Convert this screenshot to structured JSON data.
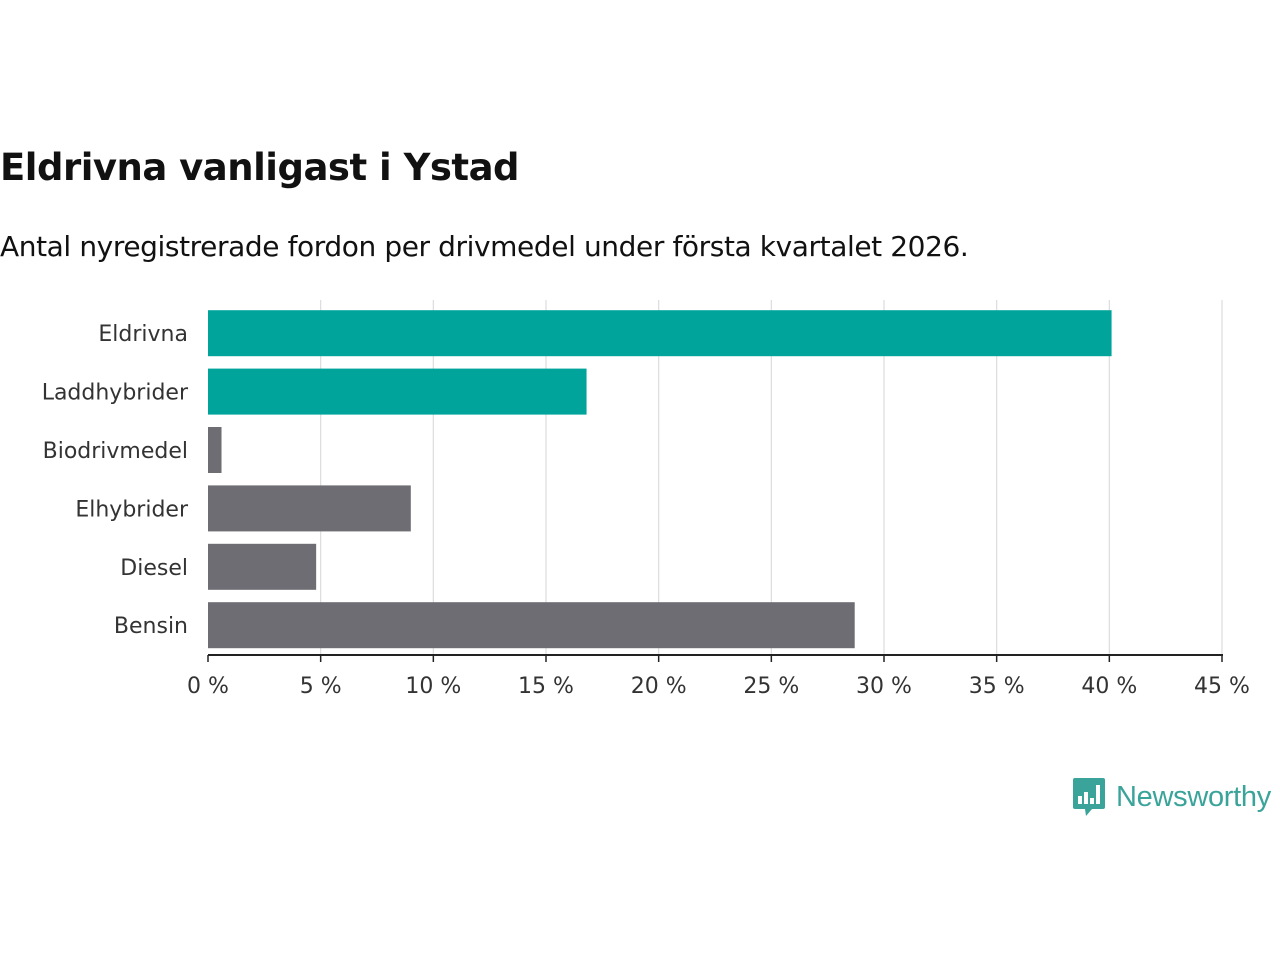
{
  "colors": {
    "highlight": "#00a49a",
    "neutral": "#6e6d73",
    "grid": "#dcdcdc",
    "axis": "#222222",
    "brand": "#3aa39a"
  },
  "brand": {
    "name": "Newsworthy",
    "icon": "newsworthy-bar-chart-speech-bubble-icon"
  },
  "chart_data": {
    "type": "bar",
    "orientation": "horizontal",
    "title": "Eldrivna vanligast i Ystad",
    "subtitle": "Antal nyregistrerade fordon per drivmedel under första kvartalet 2026.",
    "categories": [
      "Eldrivna",
      "Laddhybrider",
      "Biodrivmedel",
      "Elhybrider",
      "Diesel",
      "Bensin"
    ],
    "values": [
      40.1,
      16.8,
      0.6,
      9.0,
      4.8,
      28.7
    ],
    "highlighted": [
      true,
      true,
      false,
      false,
      false,
      false
    ],
    "xlim": [
      0,
      45
    ],
    "xticks": [
      0,
      5,
      10,
      15,
      20,
      25,
      30,
      35,
      40,
      45
    ],
    "xtick_labels": [
      "0 %",
      "5 %",
      "10 %",
      "15 %",
      "20 %",
      "25 %",
      "30 %",
      "35 %",
      "40 %",
      "45 %"
    ],
    "xlabel": "",
    "ylabel": "",
    "grid": "vertical"
  }
}
